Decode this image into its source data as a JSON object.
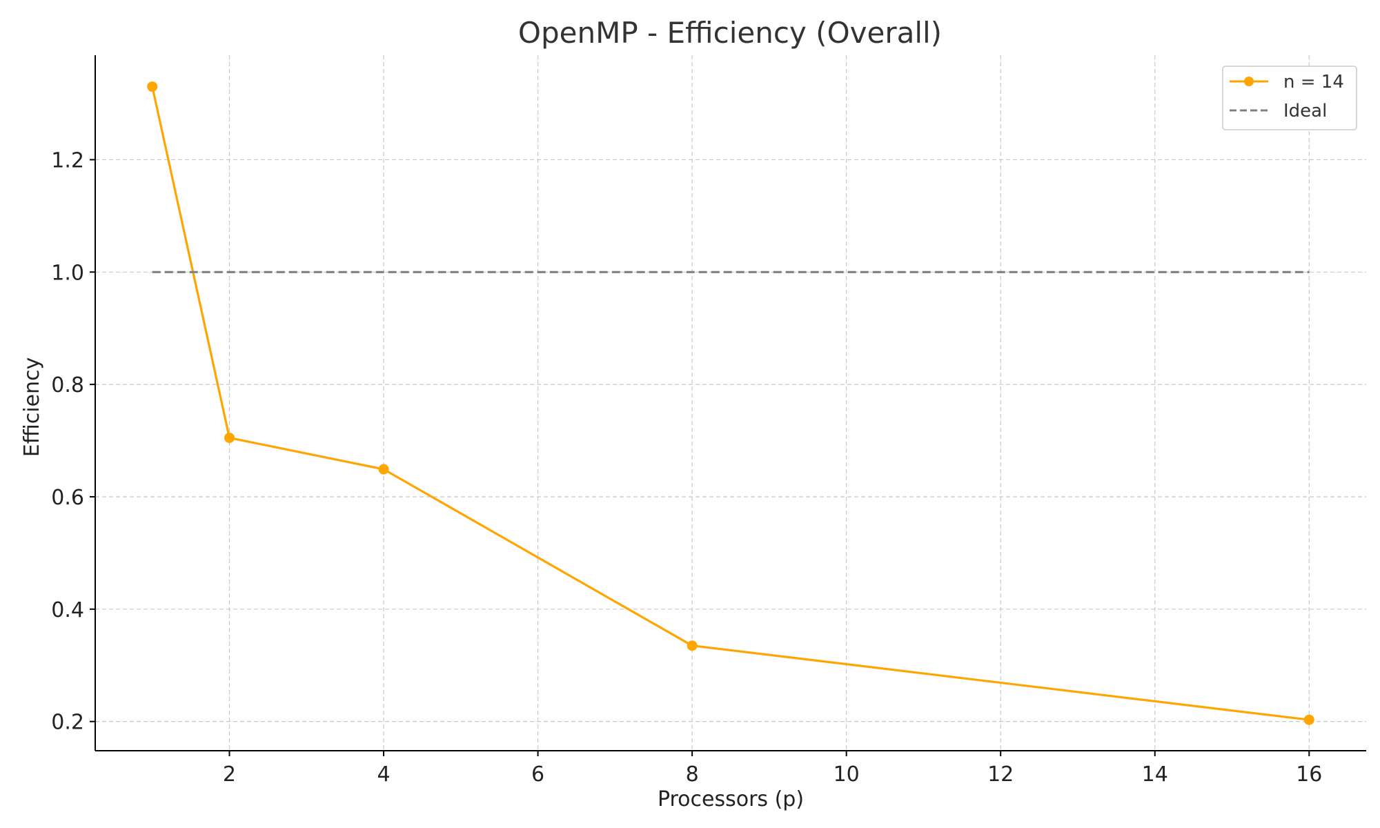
{
  "chart_data": {
    "type": "line",
    "title": "OpenMP - Efficiency (Overall)",
    "xlabel": "Processors (p)",
    "ylabel": "Efficiency",
    "xlim": [
      0.26,
      16.74
    ],
    "ylim": [
      0.148,
      1.386
    ],
    "xticks": [
      2,
      4,
      6,
      8,
      10,
      12,
      14,
      16
    ],
    "yticks": [
      0.2,
      0.4,
      0.6,
      0.8,
      1.0,
      1.2
    ],
    "ytick_labels": [
      "0.2",
      "0.4",
      "0.6",
      "0.8",
      "1.0",
      "1.2"
    ],
    "grid": true,
    "legend_position": "top-right",
    "series": [
      {
        "name": "n = 14",
        "x": [
          1,
          2,
          4,
          8,
          16
        ],
        "values": [
          1.33,
          0.705,
          0.649,
          0.335,
          0.203
        ],
        "color": "#FFA500",
        "style": "solid",
        "marker": "circle"
      },
      {
        "name": "Ideal",
        "x": [
          1,
          16
        ],
        "values": [
          1.0,
          1.0
        ],
        "color": "#808080",
        "style": "dashed",
        "marker": "none"
      }
    ]
  }
}
